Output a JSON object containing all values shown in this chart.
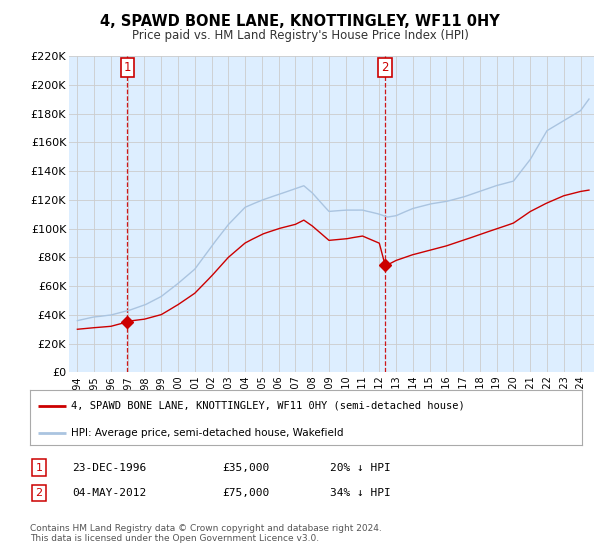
{
  "title": "4, SPAWD BONE LANE, KNOTTINGLEY, WF11 0HY",
  "subtitle": "Price paid vs. HM Land Registry's House Price Index (HPI)",
  "legend_line1": "4, SPAWD BONE LANE, KNOTTINGLEY, WF11 0HY (semi-detached house)",
  "legend_line2": "HPI: Average price, semi-detached house, Wakefield",
  "footnote1": "Contains HM Land Registry data © Crown copyright and database right 2024.",
  "footnote2": "This data is licensed under the Open Government Licence v3.0.",
  "marker1_label": "1",
  "marker1_date": "23-DEC-1996",
  "marker1_price": "£35,000",
  "marker1_hpi": "20% ↓ HPI",
  "marker2_label": "2",
  "marker2_date": "04-MAY-2012",
  "marker2_price": "£75,000",
  "marker2_hpi": "34% ↓ HPI",
  "ylim": [
    0,
    220000
  ],
  "yticks": [
    0,
    20000,
    40000,
    60000,
    80000,
    100000,
    120000,
    140000,
    160000,
    180000,
    200000,
    220000
  ],
  "ytick_labels": [
    "£0",
    "£20K",
    "£40K",
    "£60K",
    "£80K",
    "£100K",
    "£120K",
    "£140K",
    "£160K",
    "£180K",
    "£200K",
    "£220K"
  ],
  "hpi_color": "#aac4e0",
  "price_color": "#cc0000",
  "marker_color": "#cc0000",
  "vline_color": "#cc0000",
  "grid_color": "#cccccc",
  "bg_color": "#ffffff",
  "plot_bg_color": "#ddeeff",
  "marker1_x": 1996.97,
  "marker1_y": 35000,
  "marker2_x": 2012.34,
  "marker2_y": 75000,
  "xlim_start": 1993.5,
  "xlim_end": 2024.8,
  "xtick_years": [
    1994,
    1995,
    1996,
    1997,
    1998,
    1999,
    2000,
    2001,
    2002,
    2003,
    2004,
    2005,
    2006,
    2007,
    2008,
    2009,
    2010,
    2011,
    2012,
    2013,
    2014,
    2015,
    2016,
    2017,
    2018,
    2019,
    2020,
    2021,
    2022,
    2023,
    2024
  ]
}
